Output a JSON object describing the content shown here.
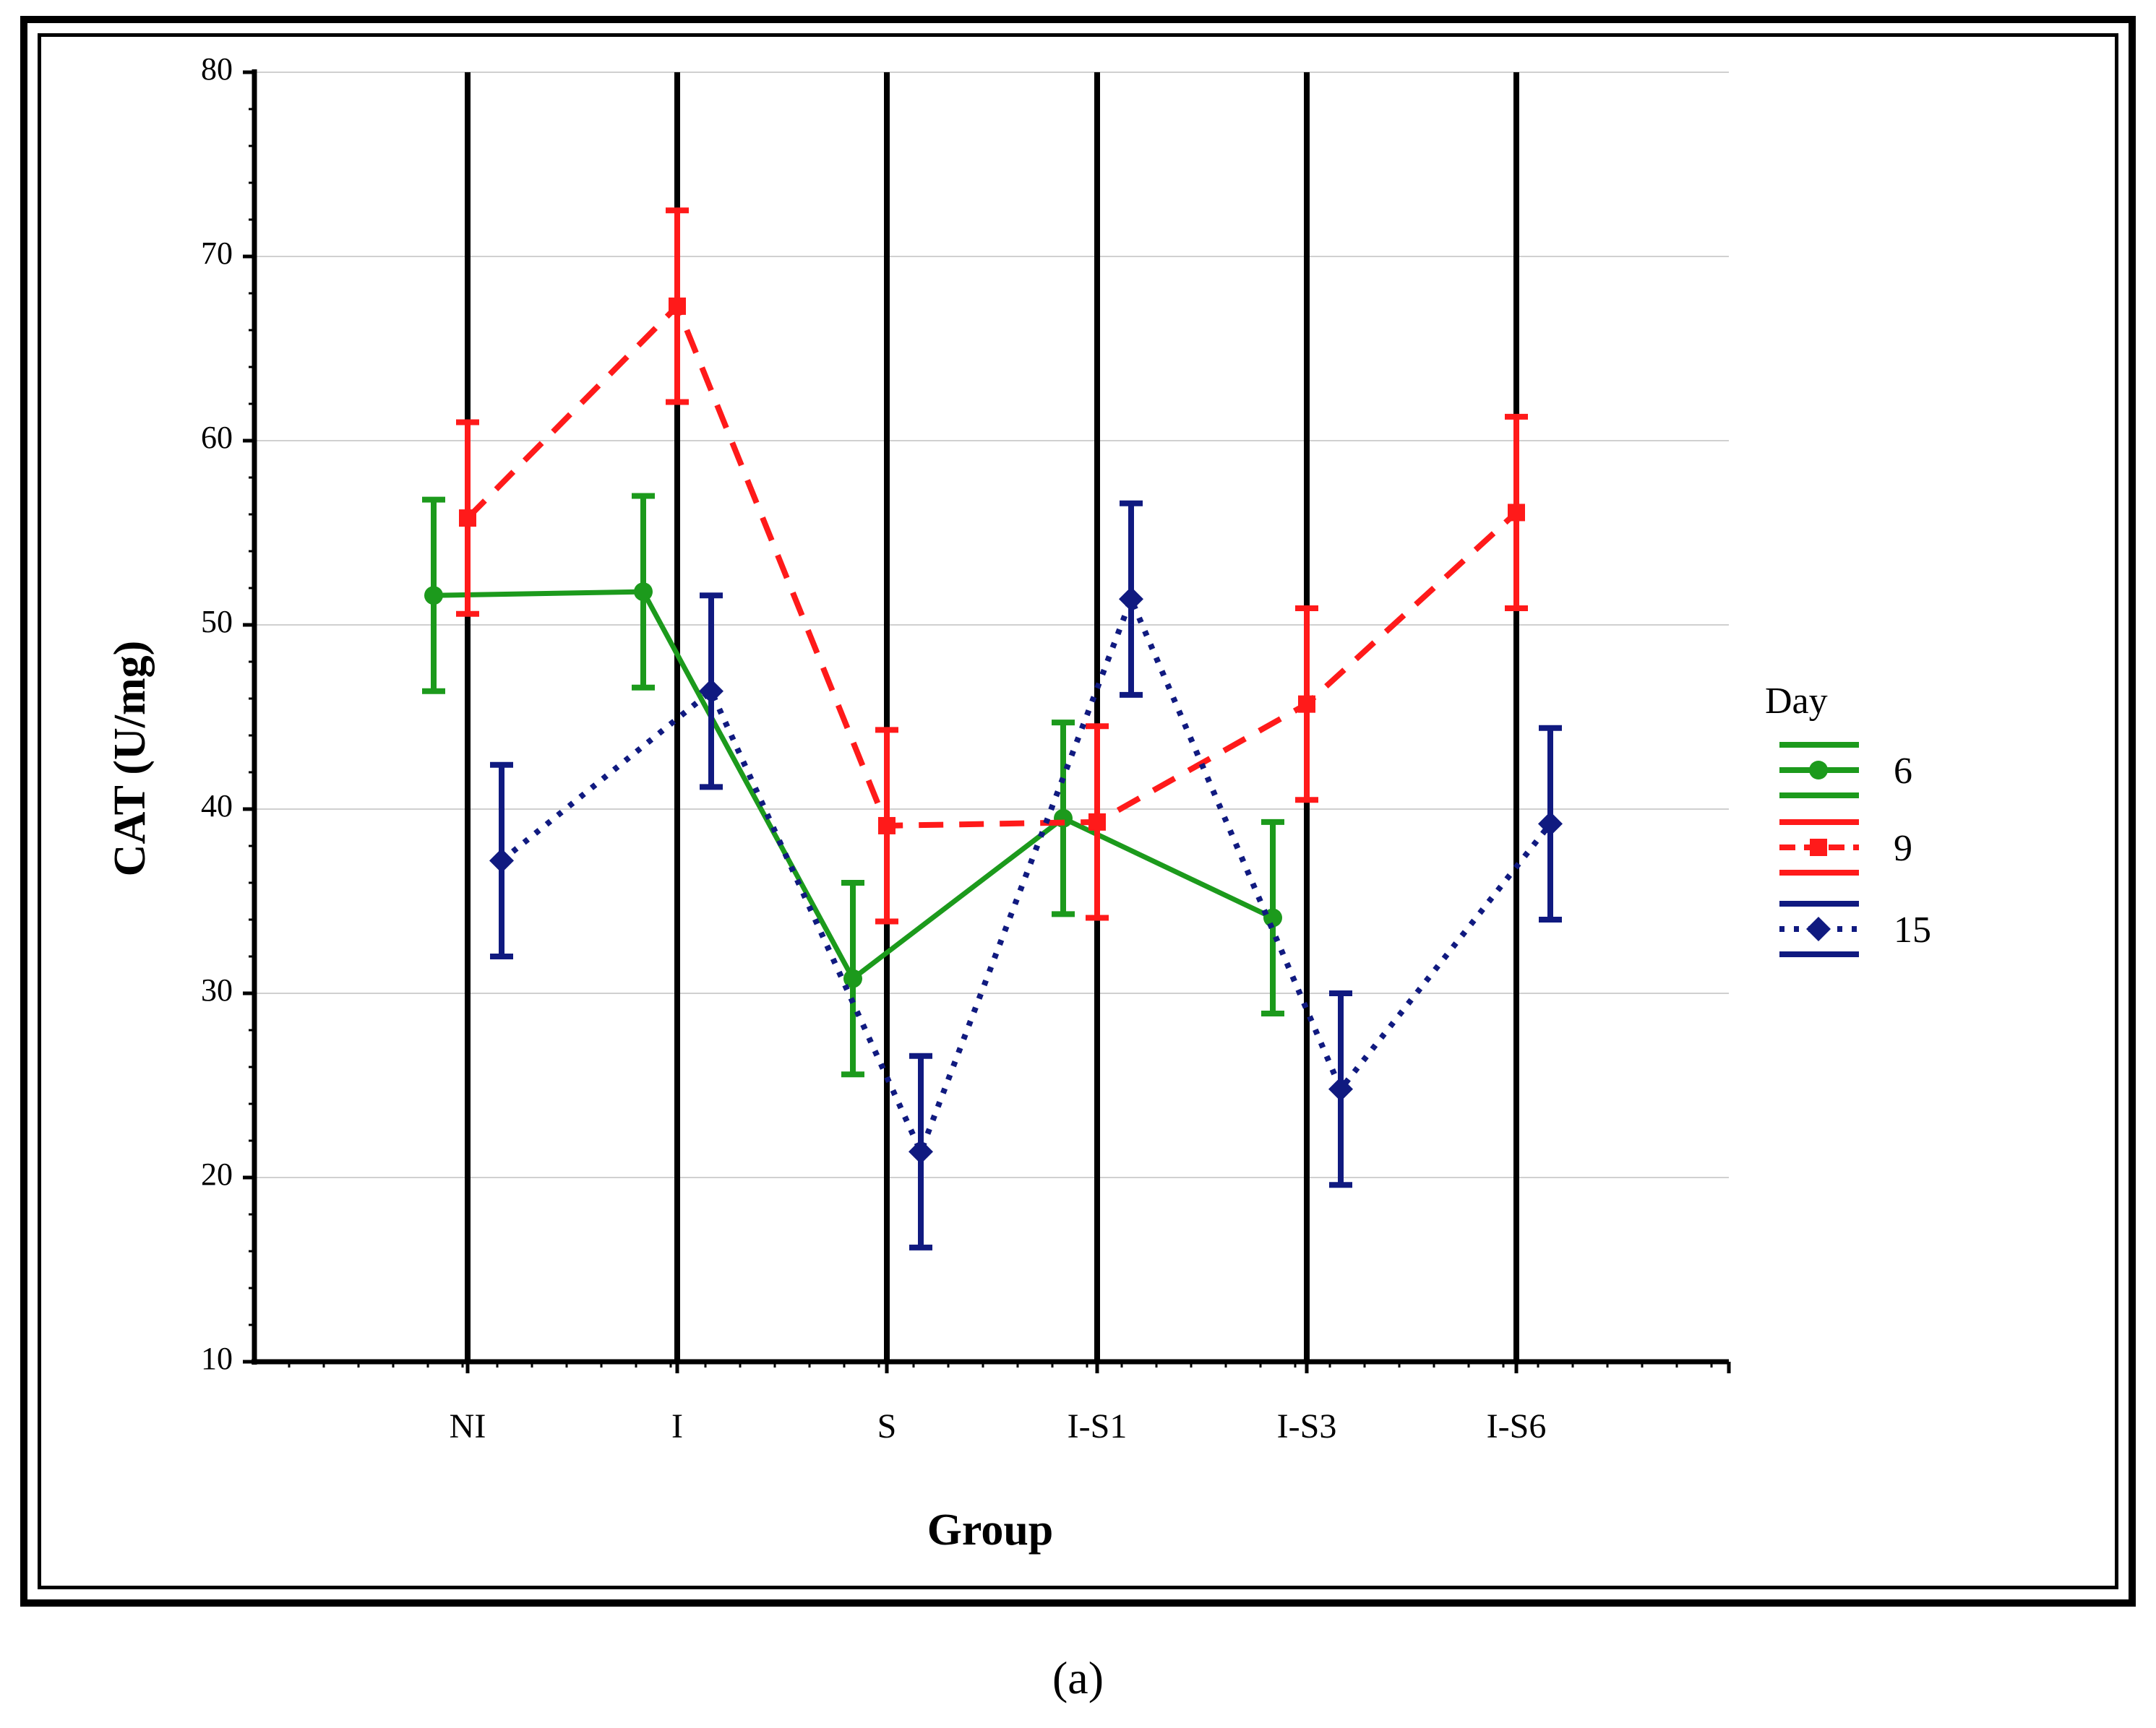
{
  "caption": "(a)",
  "chart_data": {
    "type": "line",
    "xlabel": "Group",
    "ylabel": "CAT (U/mg)",
    "categories": [
      "NI",
      "I",
      "S",
      "I-S1",
      "I-S3",
      "I-S6"
    ],
    "ylim": [
      10,
      80
    ],
    "yticks": [
      10,
      20,
      30,
      40,
      50,
      60,
      70,
      80
    ],
    "grid": true,
    "legend_title": "Day",
    "legend_position": "right",
    "error_bar_half_width": 5.2,
    "series": [
      {
        "name": "6",
        "color": "#1c9a1c",
        "dash": "solid",
        "marker": "circle",
        "values": [
          51.6,
          51.8,
          30.8,
          39.5,
          34.1,
          null
        ]
      },
      {
        "name": "9",
        "color": "#ff1a1a",
        "dash": "dashed",
        "marker": "square",
        "values": [
          55.8,
          67.3,
          39.1,
          39.3,
          45.7,
          56.1
        ]
      },
      {
        "name": "15",
        "color": "#101a80",
        "dash": "dotted",
        "marker": "diamond",
        "values": [
          37.2,
          46.4,
          21.4,
          51.4,
          24.8,
          39.2
        ]
      }
    ]
  }
}
